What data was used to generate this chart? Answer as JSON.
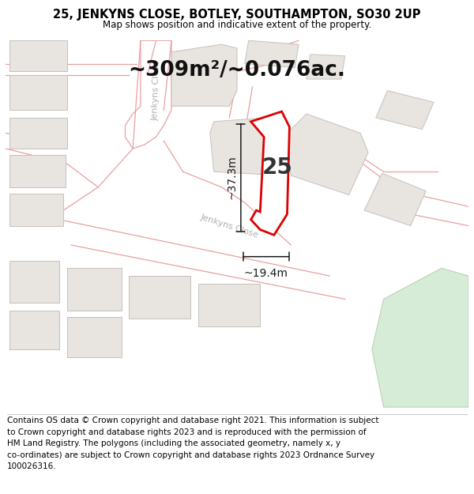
{
  "title": "25, JENKYNS CLOSE, BOTLEY, SOUTHAMPTON, SO30 2UP",
  "subtitle": "Map shows position and indicative extent of the property.",
  "footer_line1": "Contains OS data © Crown copyright and database right 2021. This information is subject",
  "footer_line2": "to Crown copyright and database rights 2023 and is reproduced with the permission of",
  "footer_line3": "HM Land Registry. The polygons (including the associated geometry, namely x, y",
  "footer_line4": "co-ordinates) are subject to Crown copyright and database rights 2023 Ordnance Survey",
  "footer_line5": "100026316.",
  "area_label": "~309m²/~0.076ac.",
  "width_label": "~19.4m",
  "height_label": "~37.3m",
  "plot_number": "25",
  "map_bg": "#ffffff",
  "road_outline": "#e8a0a0",
  "building_fill": "#e8e4e0",
  "building_stroke": "#c8c0bc",
  "green_fill": "#cce8cc",
  "green_stroke": "#aaccaa",
  "plot_stroke": "#dd0000",
  "dim_line_color": "#1a1a1a",
  "title_fontsize": 10.5,
  "subtitle_fontsize": 8.5,
  "footer_fontsize": 7.5,
  "area_label_fontsize": 19,
  "plot_label_fontsize": 20,
  "dim_label_fontsize": 10,
  "street_label_fontsize": 8,
  "street_label_color": "#b0b0b0"
}
